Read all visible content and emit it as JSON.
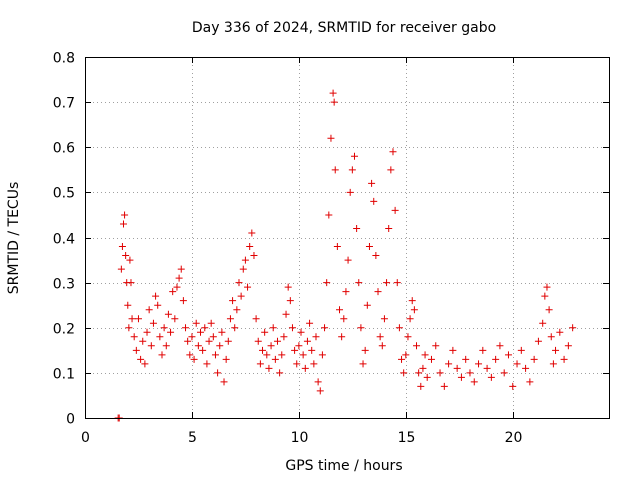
{
  "chart_data": {
    "type": "scatter",
    "title": "Day 336 of 2024, SRMTID for receiver gabo",
    "xlabel": "GPS time / hours",
    "ylabel": "SRMTID / TECUs",
    "xlim": [
      0,
      24.5
    ],
    "ylim": [
      0,
      0.8
    ],
    "xticks": [
      0,
      5,
      10,
      15,
      20
    ],
    "xtick_labels": [
      "0",
      "5",
      "10",
      "15",
      "20"
    ],
    "yticks": [
      0,
      0.1,
      0.2,
      0.3,
      0.4,
      0.5,
      0.6,
      0.7,
      0.8
    ],
    "ytick_labels": [
      "0",
      "0.1",
      "0.2",
      "0.3",
      "0.4",
      "0.5",
      "0.6",
      "0.7",
      "0.8"
    ],
    "grid": true,
    "marker": "plus",
    "color": "#e00000",
    "series": [
      {
        "name": "SRMTID",
        "points": [
          [
            1.55,
            0.0
          ],
          [
            1.6,
            0.0
          ],
          [
            1.7,
            0.33
          ],
          [
            1.75,
            0.38
          ],
          [
            1.8,
            0.43
          ],
          [
            1.85,
            0.45
          ],
          [
            1.9,
            0.36
          ],
          [
            1.95,
            0.3
          ],
          [
            2.0,
            0.25
          ],
          [
            2.05,
            0.2
          ],
          [
            2.1,
            0.35
          ],
          [
            2.15,
            0.3
          ],
          [
            2.2,
            0.22
          ],
          [
            2.3,
            0.18
          ],
          [
            2.4,
            0.15
          ],
          [
            2.5,
            0.22
          ],
          [
            2.6,
            0.13
          ],
          [
            2.7,
            0.17
          ],
          [
            2.8,
            0.12
          ],
          [
            2.9,
            0.19
          ],
          [
            3.0,
            0.24
          ],
          [
            3.1,
            0.16
          ],
          [
            3.2,
            0.21
          ],
          [
            3.3,
            0.27
          ],
          [
            3.4,
            0.25
          ],
          [
            3.5,
            0.18
          ],
          [
            3.6,
            0.14
          ],
          [
            3.7,
            0.2
          ],
          [
            3.8,
            0.16
          ],
          [
            3.9,
            0.23
          ],
          [
            4.0,
            0.19
          ],
          [
            4.1,
            0.28
          ],
          [
            4.2,
            0.22
          ],
          [
            4.3,
            0.29
          ],
          [
            4.4,
            0.31
          ],
          [
            4.5,
            0.33
          ],
          [
            4.6,
            0.26
          ],
          [
            4.7,
            0.2
          ],
          [
            4.8,
            0.17
          ],
          [
            4.9,
            0.14
          ],
          [
            5.0,
            0.18
          ],
          [
            5.1,
            0.13
          ],
          [
            5.2,
            0.21
          ],
          [
            5.3,
            0.16
          ],
          [
            5.4,
            0.19
          ],
          [
            5.5,
            0.15
          ],
          [
            5.6,
            0.2
          ],
          [
            5.7,
            0.12
          ],
          [
            5.8,
            0.17
          ],
          [
            5.9,
            0.21
          ],
          [
            6.0,
            0.18
          ],
          [
            6.1,
            0.14
          ],
          [
            6.2,
            0.1
          ],
          [
            6.3,
            0.16
          ],
          [
            6.4,
            0.19
          ],
          [
            6.5,
            0.08
          ],
          [
            6.6,
            0.13
          ],
          [
            6.7,
            0.17
          ],
          [
            6.8,
            0.22
          ],
          [
            6.9,
            0.26
          ],
          [
            7.0,
            0.2
          ],
          [
            7.1,
            0.24
          ],
          [
            7.2,
            0.3
          ],
          [
            7.3,
            0.27
          ],
          [
            7.4,
            0.33
          ],
          [
            7.5,
            0.35
          ],
          [
            7.6,
            0.29
          ],
          [
            7.7,
            0.38
          ],
          [
            7.8,
            0.41
          ],
          [
            7.9,
            0.36
          ],
          [
            8.0,
            0.22
          ],
          [
            8.1,
            0.17
          ],
          [
            8.2,
            0.12
          ],
          [
            8.3,
            0.15
          ],
          [
            8.4,
            0.19
          ],
          [
            8.5,
            0.14
          ],
          [
            8.6,
            0.11
          ],
          [
            8.7,
            0.16
          ],
          [
            8.8,
            0.2
          ],
          [
            8.9,
            0.13
          ],
          [
            9.0,
            0.17
          ],
          [
            9.1,
            0.1
          ],
          [
            9.2,
            0.14
          ],
          [
            9.3,
            0.18
          ],
          [
            9.4,
            0.23
          ],
          [
            9.5,
            0.29
          ],
          [
            9.6,
            0.26
          ],
          [
            9.7,
            0.2
          ],
          [
            9.8,
            0.15
          ],
          [
            9.9,
            0.12
          ],
          [
            10.0,
            0.16
          ],
          [
            10.1,
            0.19
          ],
          [
            10.2,
            0.14
          ],
          [
            10.3,
            0.11
          ],
          [
            10.4,
            0.17
          ],
          [
            10.5,
            0.21
          ],
          [
            10.6,
            0.15
          ],
          [
            10.7,
            0.12
          ],
          [
            10.8,
            0.18
          ],
          [
            10.9,
            0.08
          ],
          [
            11.0,
            0.06
          ],
          [
            11.1,
            0.14
          ],
          [
            11.2,
            0.2
          ],
          [
            11.3,
            0.3
          ],
          [
            11.4,
            0.45
          ],
          [
            11.5,
            0.62
          ],
          [
            11.6,
            0.72
          ],
          [
            11.65,
            0.7
          ],
          [
            11.7,
            0.55
          ],
          [
            11.8,
            0.38
          ],
          [
            11.9,
            0.24
          ],
          [
            12.0,
            0.18
          ],
          [
            12.1,
            0.22
          ],
          [
            12.2,
            0.28
          ],
          [
            12.3,
            0.35
          ],
          [
            12.4,
            0.5
          ],
          [
            12.5,
            0.55
          ],
          [
            12.6,
            0.58
          ],
          [
            12.7,
            0.42
          ],
          [
            12.8,
            0.3
          ],
          [
            12.9,
            0.2
          ],
          [
            13.0,
            0.12
          ],
          [
            13.1,
            0.15
          ],
          [
            13.2,
            0.25
          ],
          [
            13.3,
            0.38
          ],
          [
            13.4,
            0.52
          ],
          [
            13.5,
            0.48
          ],
          [
            13.6,
            0.36
          ],
          [
            13.7,
            0.28
          ],
          [
            13.8,
            0.18
          ],
          [
            13.9,
            0.16
          ],
          [
            14.0,
            0.22
          ],
          [
            14.1,
            0.3
          ],
          [
            14.2,
            0.42
          ],
          [
            14.3,
            0.55
          ],
          [
            14.4,
            0.59
          ],
          [
            14.5,
            0.46
          ],
          [
            14.6,
            0.3
          ],
          [
            14.7,
            0.2
          ],
          [
            14.8,
            0.13
          ],
          [
            14.9,
            0.1
          ],
          [
            15.0,
            0.14
          ],
          [
            15.1,
            0.18
          ],
          [
            15.2,
            0.22
          ],
          [
            15.3,
            0.26
          ],
          [
            15.4,
            0.24
          ],
          [
            15.5,
            0.16
          ],
          [
            15.6,
            0.1
          ],
          [
            15.7,
            0.07
          ],
          [
            15.8,
            0.11
          ],
          [
            15.9,
            0.14
          ],
          [
            16.0,
            0.09
          ],
          [
            16.2,
            0.13
          ],
          [
            16.4,
            0.16
          ],
          [
            16.6,
            0.1
          ],
          [
            16.8,
            0.07
          ],
          [
            17.0,
            0.12
          ],
          [
            17.2,
            0.15
          ],
          [
            17.4,
            0.11
          ],
          [
            17.6,
            0.09
          ],
          [
            17.8,
            0.13
          ],
          [
            18.0,
            0.1
          ],
          [
            18.2,
            0.08
          ],
          [
            18.4,
            0.12
          ],
          [
            18.6,
            0.15
          ],
          [
            18.8,
            0.11
          ],
          [
            19.0,
            0.09
          ],
          [
            19.2,
            0.13
          ],
          [
            19.4,
            0.16
          ],
          [
            19.6,
            0.1
          ],
          [
            19.8,
            0.14
          ],
          [
            20.0,
            0.07
          ],
          [
            20.2,
            0.12
          ],
          [
            20.4,
            0.15
          ],
          [
            20.6,
            0.11
          ],
          [
            20.8,
            0.08
          ],
          [
            21.0,
            0.13
          ],
          [
            21.2,
            0.17
          ],
          [
            21.4,
            0.21
          ],
          [
            21.5,
            0.27
          ],
          [
            21.6,
            0.29
          ],
          [
            21.7,
            0.24
          ],
          [
            21.8,
            0.18
          ],
          [
            21.9,
            0.12
          ],
          [
            22.0,
            0.15
          ],
          [
            22.2,
            0.19
          ],
          [
            22.4,
            0.13
          ],
          [
            22.6,
            0.16
          ],
          [
            22.8,
            0.2
          ]
        ]
      }
    ]
  }
}
